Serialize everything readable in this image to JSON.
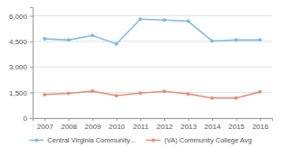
{
  "chart_data": {
    "type": "line",
    "x": [
      2007,
      2008,
      2009,
      2010,
      2011,
      2012,
      2013,
      2014,
      2015,
      2016
    ],
    "xlim": [
      2006.5,
      2016.5
    ],
    "xticks": [
      2007,
      2008,
      2009,
      2010,
      2011,
      2012,
      2013,
      2014,
      2015,
      2016
    ],
    "ylim": [
      0,
      6500
    ],
    "yticks": [
      0,
      {
        "value": 1500,
        "label": "1,500"
      },
      {
        "value": 3000,
        "label": "3,000"
      },
      {
        "value": 4500,
        "label": "4,500"
      },
      {
        "value": 6000,
        "label": "6,000"
      }
    ],
    "grid": true,
    "legend": "bottom",
    "series": [
      {
        "name": "Central Virginia Community...",
        "color": "#7bbce8",
        "marker": "circle",
        "values": [
          4650,
          4580,
          4850,
          4350,
          5800,
          5750,
          5680,
          4520,
          4580,
          4580
        ]
      },
      {
        "name": "(VA) Community College Avg",
        "color": "#e8907a",
        "marker": "circle",
        "values": [
          1380,
          1450,
          1580,
          1320,
          1470,
          1570,
          1420,
          1180,
          1180,
          1540
        ]
      }
    ]
  }
}
